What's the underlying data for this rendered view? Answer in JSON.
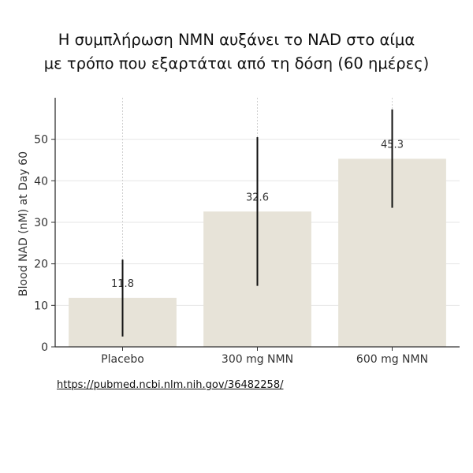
{
  "title_lines": [
    "Η συμπλήρωση NMN αυξάνει το NAD στο αίμα",
    "με τρόπο που εξαρτάται από τη δόση (60 ημέρες)"
  ],
  "source_link": "https://pubmed.ncbi.nlm.nih.gov/36482258/",
  "chart_data": {
    "type": "bar",
    "categories": [
      "Placebo",
      "300 mg NMN",
      "600 mg NMN"
    ],
    "values": [
      11.8,
      32.6,
      45.3
    ],
    "error_low": [
      2.5,
      14.7,
      33.5
    ],
    "error_high": [
      21.0,
      50.5,
      57.2
    ],
    "data_labels": [
      "11.8",
      "32.6",
      "45.3"
    ],
    "ylabel": "Blood NAD (nM) at Day 60",
    "xlabel": "",
    "ylim": [
      0,
      60
    ],
    "yticks": [
      0,
      10,
      20,
      30,
      40,
      50
    ],
    "grid": true,
    "colors": {
      "bar": "#e7e3d8",
      "error": "#111111",
      "axis": "#333333",
      "grid": "#e6e6e6"
    }
  }
}
